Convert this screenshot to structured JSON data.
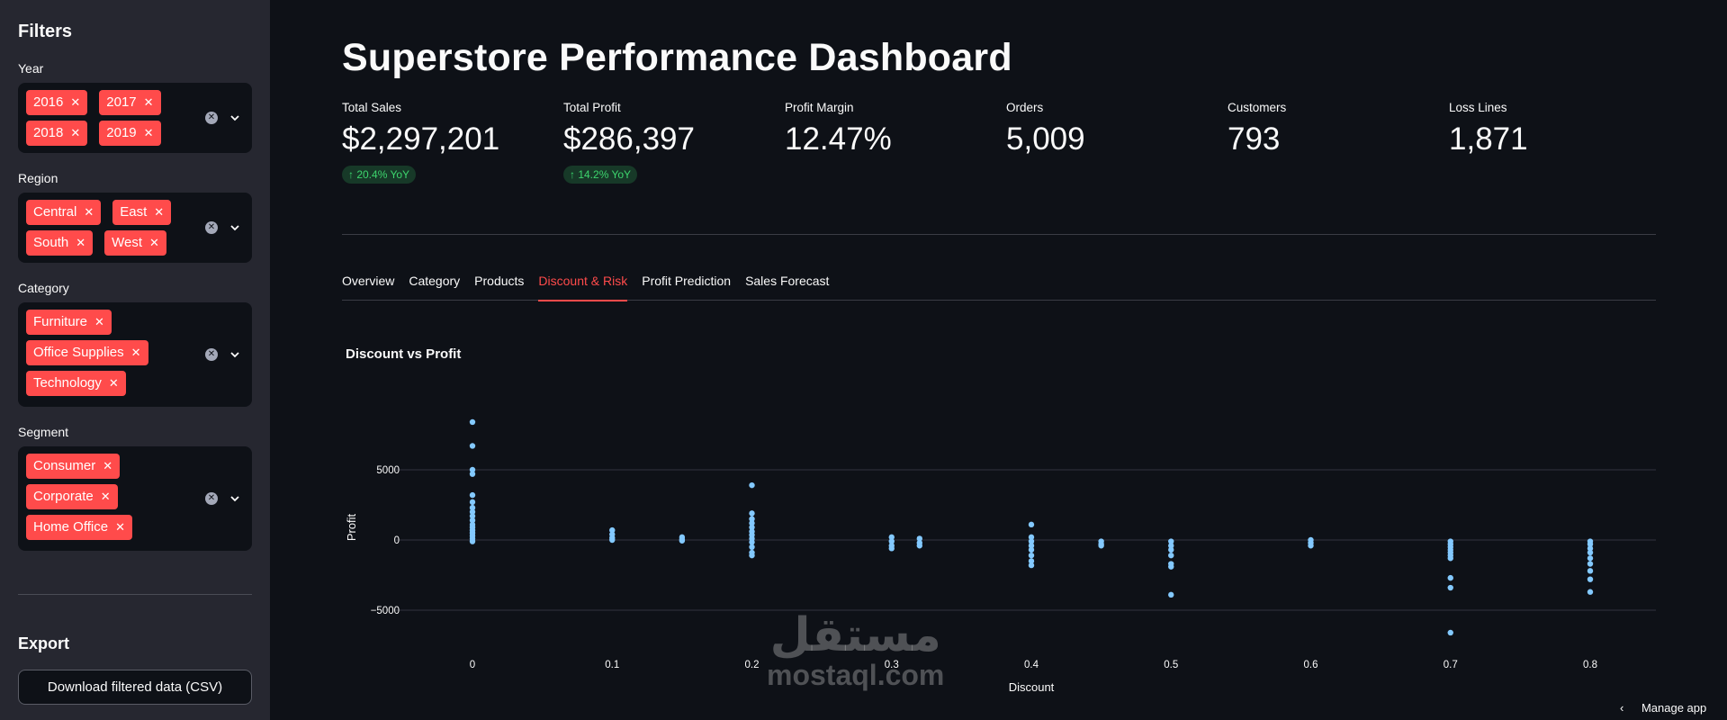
{
  "sidebar": {
    "title": "Filters",
    "filters": [
      {
        "label": "Year",
        "tags": [
          "2016",
          "2017",
          "2018",
          "2019"
        ]
      },
      {
        "label": "Region",
        "tags": [
          "Central",
          "East",
          "South",
          "West"
        ]
      },
      {
        "label": "Category",
        "tags": [
          "Furniture",
          "Office Supplies",
          "Technology"
        ]
      },
      {
        "label": "Segment",
        "tags": [
          "Consumer",
          "Corporate",
          "Home Office"
        ]
      }
    ],
    "export_title": "Export",
    "download_label": "Download filtered data (CSV)"
  },
  "main": {
    "title": "Superstore Performance Dashboard",
    "metrics": [
      {
        "label": "Total Sales",
        "value": "$2,297,201",
        "delta": "↑ 20.4% YoY"
      },
      {
        "label": "Total Profit",
        "value": "$286,397",
        "delta": "↑ 14.2% YoY"
      },
      {
        "label": "Profit Margin",
        "value": "12.47%",
        "delta": ""
      },
      {
        "label": "Orders",
        "value": "5,009",
        "delta": ""
      },
      {
        "label": "Customers",
        "value": "793",
        "delta": ""
      },
      {
        "label": "Loss Lines",
        "value": "1,871",
        "delta": ""
      }
    ],
    "tabs": [
      "Overview",
      "Category",
      "Products",
      "Discount & Risk",
      "Profit Prediction",
      "Sales Forecast"
    ],
    "active_tab": "Discount & Risk"
  },
  "chart_data": {
    "type": "scatter",
    "title": "Discount vs Profit",
    "xlabel": "Discount",
    "ylabel": "Profit",
    "x_ticks": [
      0,
      0.1,
      0.2,
      0.3,
      0.4,
      0.5,
      0.6,
      0.7,
      0.8
    ],
    "y_ticks": [
      -5000,
      0,
      5000
    ],
    "y_tick_labels": [
      "−5000",
      "0",
      "5000"
    ],
    "xlim": [
      -0.05,
      0.85
    ],
    "ylim": [
      -8000,
      9500
    ],
    "grid": true,
    "color": "#83c9ff",
    "points": [
      {
        "x": 0,
        "y": 8400
      },
      {
        "x": 0,
        "y": 6700
      },
      {
        "x": 0,
        "y": 5000
      },
      {
        "x": 0,
        "y": 4700
      },
      {
        "x": 0,
        "y": 3200
      },
      {
        "x": 0,
        "y": 2700
      },
      {
        "x": 0,
        "y": 2300
      },
      {
        "x": 0,
        "y": 2000
      },
      {
        "x": 0,
        "y": 1700
      },
      {
        "x": 0,
        "y": 1400
      },
      {
        "x": 0,
        "y": 1100
      },
      {
        "x": 0,
        "y": 900
      },
      {
        "x": 0,
        "y": 700
      },
      {
        "x": 0,
        "y": 500
      },
      {
        "x": 0,
        "y": 300
      },
      {
        "x": 0,
        "y": 100
      },
      {
        "x": 0,
        "y": -100
      },
      {
        "x": 0.1,
        "y": 700
      },
      {
        "x": 0.1,
        "y": 400
      },
      {
        "x": 0.1,
        "y": 150
      },
      {
        "x": 0.1,
        "y": 0
      },
      {
        "x": 0.15,
        "y": 200
      },
      {
        "x": 0.15,
        "y": 50
      },
      {
        "x": 0.15,
        "y": -50
      },
      {
        "x": 0.2,
        "y": 3900
      },
      {
        "x": 0.2,
        "y": 1900
      },
      {
        "x": 0.2,
        "y": 1500
      },
      {
        "x": 0.2,
        "y": 1200
      },
      {
        "x": 0.2,
        "y": 900
      },
      {
        "x": 0.2,
        "y": 600
      },
      {
        "x": 0.2,
        "y": 350
      },
      {
        "x": 0.2,
        "y": 100
      },
      {
        "x": 0.2,
        "y": -150
      },
      {
        "x": 0.2,
        "y": -500
      },
      {
        "x": 0.2,
        "y": -900
      },
      {
        "x": 0.2,
        "y": -1100
      },
      {
        "x": 0.3,
        "y": 200
      },
      {
        "x": 0.3,
        "y": -100
      },
      {
        "x": 0.3,
        "y": -400
      },
      {
        "x": 0.3,
        "y": -600
      },
      {
        "x": 0.32,
        "y": 100
      },
      {
        "x": 0.32,
        "y": -200
      },
      {
        "x": 0.32,
        "y": -400
      },
      {
        "x": 0.4,
        "y": 1100
      },
      {
        "x": 0.4,
        "y": 200
      },
      {
        "x": 0.4,
        "y": -100
      },
      {
        "x": 0.4,
        "y": -400
      },
      {
        "x": 0.4,
        "y": -700
      },
      {
        "x": 0.4,
        "y": -1100
      },
      {
        "x": 0.4,
        "y": -1500
      },
      {
        "x": 0.4,
        "y": -1800
      },
      {
        "x": 0.45,
        "y": -100
      },
      {
        "x": 0.45,
        "y": -300
      },
      {
        "x": 0.45,
        "y": -400
      },
      {
        "x": 0.5,
        "y": -100
      },
      {
        "x": 0.5,
        "y": -400
      },
      {
        "x": 0.5,
        "y": -700
      },
      {
        "x": 0.5,
        "y": -1100
      },
      {
        "x": 0.5,
        "y": -1700
      },
      {
        "x": 0.5,
        "y": -1900
      },
      {
        "x": 0.5,
        "y": -3900
      },
      {
        "x": 0.6,
        "y": 0
      },
      {
        "x": 0.6,
        "y": -200
      },
      {
        "x": 0.6,
        "y": -400
      },
      {
        "x": 0.7,
        "y": -100
      },
      {
        "x": 0.7,
        "y": -300
      },
      {
        "x": 0.7,
        "y": -500
      },
      {
        "x": 0.7,
        "y": -700
      },
      {
        "x": 0.7,
        "y": -900
      },
      {
        "x": 0.7,
        "y": -1100
      },
      {
        "x": 0.7,
        "y": -1300
      },
      {
        "x": 0.7,
        "y": -2700
      },
      {
        "x": 0.7,
        "y": -3400
      },
      {
        "x": 0.7,
        "y": -6600
      },
      {
        "x": 0.8,
        "y": -100
      },
      {
        "x": 0.8,
        "y": -300
      },
      {
        "x": 0.8,
        "y": -600
      },
      {
        "x": 0.8,
        "y": -900
      },
      {
        "x": 0.8,
        "y": -1300
      },
      {
        "x": 0.8,
        "y": -1700
      },
      {
        "x": 0.8,
        "y": -2200
      },
      {
        "x": 0.8,
        "y": -2800
      },
      {
        "x": 0.8,
        "y": -3700
      }
    ]
  },
  "watermark": {
    "arabic": "مستقل",
    "latin": "mostaql.com"
  },
  "footer": {
    "manage_label": "Manage app"
  }
}
